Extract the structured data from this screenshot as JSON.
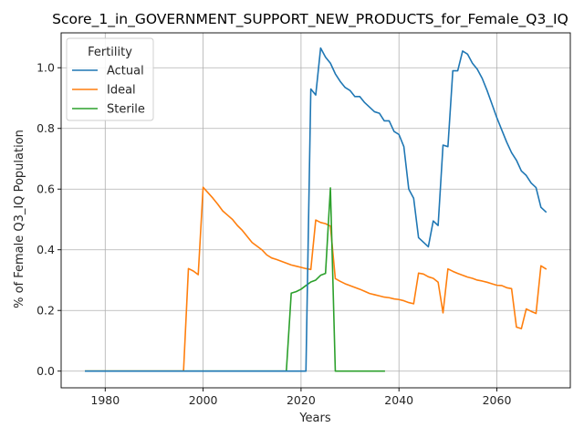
{
  "chart_data": {
    "type": "line",
    "title": "Score_1_in_GOVERNMENT_SUPPORT_NEW_PRODUCTS_for_Female_Q3_IQ",
    "xlabel": "Years",
    "ylabel": "% of Female Q3_IQ Population",
    "xlim": [
      1971,
      2075
    ],
    "ylim": [
      -0.055,
      1.115
    ],
    "xticks": [
      1980,
      2000,
      2020,
      2040,
      2060
    ],
    "yticks": [
      0.0,
      0.2,
      0.4,
      0.6,
      0.8,
      1.0
    ],
    "xtick_labels": [
      "1980",
      "2000",
      "2020",
      "2040",
      "2060"
    ],
    "ytick_labels": [
      "0.0",
      "0.2",
      "0.4",
      "0.6",
      "0.8",
      "1.0"
    ],
    "grid": true,
    "legend": {
      "title": "Fertility",
      "placement": "top-left"
    },
    "series": [
      {
        "name": "Actual",
        "color": "#1f77b4",
        "x": [
          1976,
          2021,
          2022,
          2023,
          2024,
          2025,
          2026,
          2027,
          2028,
          2029,
          2030,
          2031,
          2032,
          2033,
          2034,
          2035,
          2036,
          2037,
          2038,
          2039,
          2040,
          2041,
          2042,
          2043,
          2044,
          2045,
          2046,
          2047,
          2048,
          2049,
          2050,
          2051,
          2052,
          2053,
          2054,
          2055,
          2056,
          2057,
          2058,
          2059,
          2060,
          2061,
          2062,
          2063,
          2064,
          2065,
          2066,
          2067,
          2068,
          2069,
          2070
        ],
        "y": [
          0.0,
          0.0,
          0.93,
          0.91,
          1.065,
          1.035,
          1.015,
          0.98,
          0.955,
          0.935,
          0.925,
          0.905,
          0.905,
          0.885,
          0.87,
          0.855,
          0.85,
          0.825,
          0.825,
          0.79,
          0.78,
          0.74,
          0.6,
          0.57,
          0.44,
          0.425,
          0.41,
          0.495,
          0.48,
          0.745,
          0.74,
          0.99,
          0.99,
          1.055,
          1.045,
          1.015,
          0.995,
          0.965,
          0.925,
          0.88,
          0.835,
          0.795,
          0.755,
          0.72,
          0.695,
          0.66,
          0.645,
          0.62,
          0.605,
          0.54,
          0.525
        ]
      },
      {
        "name": "Ideal",
        "color": "#ff7f0e",
        "x": [
          1976,
          1996,
          1997,
          1998,
          1999,
          2000,
          2001,
          2002,
          2003,
          2004,
          2005,
          2006,
          2007,
          2008,
          2009,
          2010,
          2011,
          2012,
          2013,
          2014,
          2015,
          2016,
          2017,
          2018,
          2019,
          2020,
          2021,
          2022,
          2023,
          2024,
          2025,
          2026,
          2027,
          2028,
          2029,
          2030,
          2031,
          2032,
          2033,
          2034,
          2035,
          2036,
          2037,
          2038,
          2039,
          2040,
          2041,
          2042,
          2043,
          2044,
          2045,
          2046,
          2047,
          2048,
          2049,
          2050,
          2051,
          2052,
          2053,
          2054,
          2055,
          2056,
          2057,
          2058,
          2059,
          2060,
          2061,
          2062,
          2063,
          2064,
          2065,
          2066,
          2067,
          2068,
          2069,
          2070
        ],
        "y": [
          0.0,
          0.0,
          0.338,
          0.33,
          0.318,
          0.606,
          0.588,
          0.57,
          0.55,
          0.528,
          0.514,
          0.5,
          0.48,
          0.464,
          0.444,
          0.424,
          0.412,
          0.4,
          0.383,
          0.373,
          0.368,
          0.362,
          0.356,
          0.35,
          0.346,
          0.342,
          0.338,
          0.335,
          0.498,
          0.49,
          0.486,
          0.478,
          0.305,
          0.296,
          0.288,
          0.282,
          0.276,
          0.27,
          0.263,
          0.256,
          0.252,
          0.248,
          0.244,
          0.242,
          0.238,
          0.236,
          0.232,
          0.226,
          0.222,
          0.323,
          0.32,
          0.311,
          0.306,
          0.293,
          0.192,
          0.337,
          0.329,
          0.322,
          0.316,
          0.31,
          0.306,
          0.3,
          0.297,
          0.293,
          0.288,
          0.283,
          0.282,
          0.275,
          0.272,
          0.145,
          0.14,
          0.205,
          0.197,
          0.19,
          0.347,
          0.337
        ]
      },
      {
        "name": "Sterile",
        "color": "#2ca02c",
        "x": [
          1976,
          2017,
          2018,
          2019,
          2020,
          2021,
          2022,
          2023,
          2024,
          2025,
          2026,
          2027,
          2037
        ],
        "y": [
          0.0,
          0.0,
          0.257,
          0.262,
          0.27,
          0.282,
          0.294,
          0.3,
          0.316,
          0.322,
          0.604,
          0.0,
          0.0
        ]
      }
    ]
  }
}
